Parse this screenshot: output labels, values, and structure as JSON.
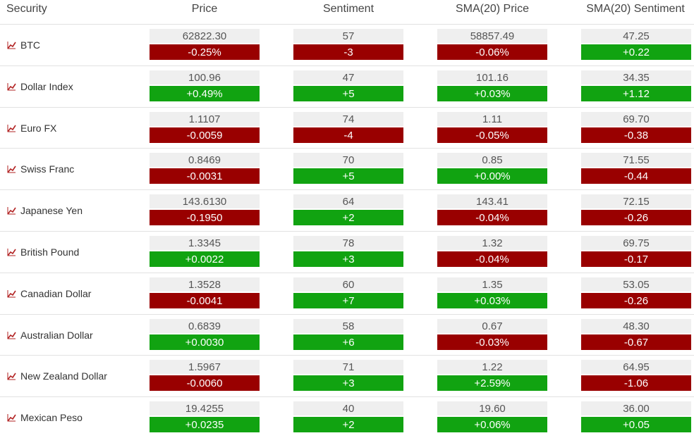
{
  "header": {
    "security": "Security",
    "price": "Price",
    "sentiment": "Sentiment",
    "sma_price": "SMA(20) Price",
    "sma_sentiment": "SMA(20) Sentiment"
  },
  "colors": {
    "negative": "#990000",
    "positive": "#11a311",
    "value_bg": "#efefef"
  },
  "icon": "line-chart-icon",
  "rows": [
    {
      "name": "BTC",
      "price": {
        "value": "62822.30",
        "change": "-0.25%",
        "dir": "down"
      },
      "sentiment": {
        "value": "57",
        "change": "-3",
        "dir": "down"
      },
      "sma_price": {
        "value": "58857.49",
        "change": "-0.06%",
        "dir": "down"
      },
      "sma_sentiment": {
        "value": "47.25",
        "change": "+0.22",
        "dir": "up"
      }
    },
    {
      "name": "Dollar Index",
      "price": {
        "value": "100.96",
        "change": "+0.49%",
        "dir": "up"
      },
      "sentiment": {
        "value": "47",
        "change": "+5",
        "dir": "up"
      },
      "sma_price": {
        "value": "101.16",
        "change": "+0.03%",
        "dir": "up"
      },
      "sma_sentiment": {
        "value": "34.35",
        "change": "+1.12",
        "dir": "up"
      }
    },
    {
      "name": "Euro FX",
      "price": {
        "value": "1.1107",
        "change": "-0.0059",
        "dir": "down"
      },
      "sentiment": {
        "value": "74",
        "change": "-4",
        "dir": "down"
      },
      "sma_price": {
        "value": "1.11",
        "change": "-0.05%",
        "dir": "down"
      },
      "sma_sentiment": {
        "value": "69.70",
        "change": "-0.38",
        "dir": "down"
      }
    },
    {
      "name": "Swiss Franc",
      "price": {
        "value": "0.8469",
        "change": "-0.0031",
        "dir": "down"
      },
      "sentiment": {
        "value": "70",
        "change": "+5",
        "dir": "up"
      },
      "sma_price": {
        "value": "0.85",
        "change": "+0.00%",
        "dir": "up"
      },
      "sma_sentiment": {
        "value": "71.55",
        "change": "-0.44",
        "dir": "down"
      }
    },
    {
      "name": "Japanese Yen",
      "price": {
        "value": "143.6130",
        "change": "-0.1950",
        "dir": "down"
      },
      "sentiment": {
        "value": "64",
        "change": "+2",
        "dir": "up"
      },
      "sma_price": {
        "value": "143.41",
        "change": "-0.04%",
        "dir": "down"
      },
      "sma_sentiment": {
        "value": "72.15",
        "change": "-0.26",
        "dir": "down"
      }
    },
    {
      "name": "British Pound",
      "price": {
        "value": "1.3345",
        "change": "+0.0022",
        "dir": "up"
      },
      "sentiment": {
        "value": "78",
        "change": "+3",
        "dir": "up"
      },
      "sma_price": {
        "value": "1.32",
        "change": "-0.04%",
        "dir": "down"
      },
      "sma_sentiment": {
        "value": "69.75",
        "change": "-0.17",
        "dir": "down"
      }
    },
    {
      "name": "Canadian Dollar",
      "price": {
        "value": "1.3528",
        "change": "-0.0041",
        "dir": "down"
      },
      "sentiment": {
        "value": "60",
        "change": "+7",
        "dir": "up"
      },
      "sma_price": {
        "value": "1.35",
        "change": "+0.03%",
        "dir": "up"
      },
      "sma_sentiment": {
        "value": "53.05",
        "change": "-0.26",
        "dir": "down"
      }
    },
    {
      "name": "Australian Dollar",
      "price": {
        "value": "0.6839",
        "change": "+0.0030",
        "dir": "up"
      },
      "sentiment": {
        "value": "58",
        "change": "+6",
        "dir": "up"
      },
      "sma_price": {
        "value": "0.67",
        "change": "-0.03%",
        "dir": "down"
      },
      "sma_sentiment": {
        "value": "48.30",
        "change": "-0.67",
        "dir": "down"
      }
    },
    {
      "name": "New Zealand Dollar",
      "price": {
        "value": "1.5967",
        "change": "-0.0060",
        "dir": "down"
      },
      "sentiment": {
        "value": "71",
        "change": "+3",
        "dir": "up"
      },
      "sma_price": {
        "value": "1.22",
        "change": "+2.59%",
        "dir": "up"
      },
      "sma_sentiment": {
        "value": "64.95",
        "change": "-1.06",
        "dir": "down"
      }
    },
    {
      "name": "Mexican Peso",
      "price": {
        "value": "19.4255",
        "change": "+0.0235",
        "dir": "up"
      },
      "sentiment": {
        "value": "40",
        "change": "+2",
        "dir": "up"
      },
      "sma_price": {
        "value": "19.60",
        "change": "+0.06%",
        "dir": "up"
      },
      "sma_sentiment": {
        "value": "36.00",
        "change": "+0.05",
        "dir": "up"
      }
    }
  ]
}
